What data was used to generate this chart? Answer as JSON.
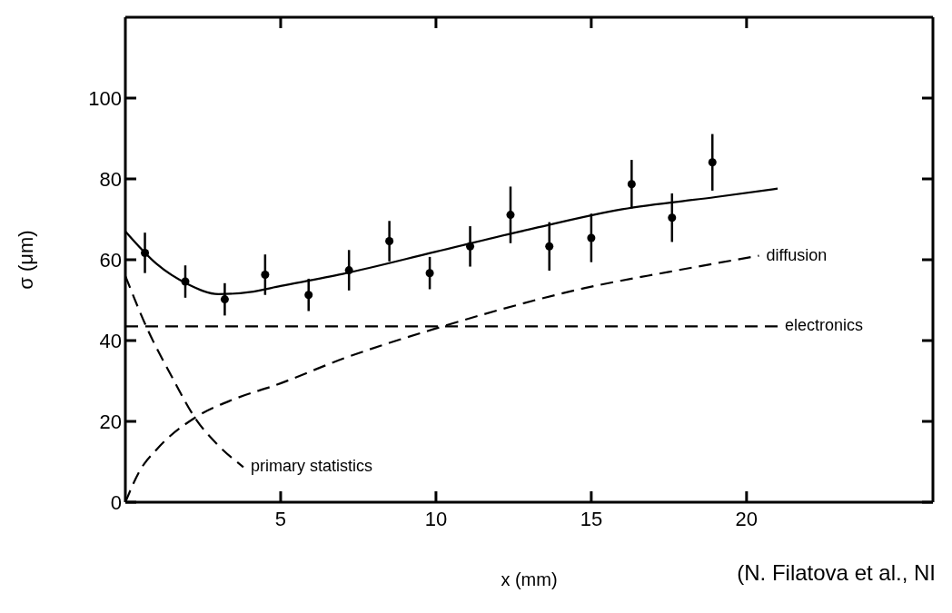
{
  "chart_data": {
    "type": "line",
    "xlabel": "x (mm)",
    "ylabel": "σ (μm)",
    "xlim": [
      0,
      26
    ],
    "xticks": [
      5,
      10,
      15,
      20
    ],
    "ylim": [
      0,
      120
    ],
    "yticks": [
      0,
      20,
      40,
      60,
      80,
      100
    ],
    "grid": false,
    "legend": false,
    "series": [
      {
        "type": "scatter",
        "color": "#000000",
        "marker": "circle",
        "x": [
          0.63,
          1.93,
          3.2,
          4.5,
          5.9,
          7.2,
          8.5,
          9.8,
          11.1,
          12.4,
          13.65,
          15,
          16.3,
          17.6,
          18.9
        ],
        "values": [
          61.7,
          54.6,
          50.2,
          56.3,
          51.3,
          57.4,
          64.6,
          56.7,
          63.3,
          71.1,
          63.3,
          65.4,
          78.7,
          70.4,
          84.1
        ],
        "errors": [
          5,
          4,
          4,
          5,
          4,
          5,
          5,
          4,
          5,
          7,
          6,
          6,
          6,
          6,
          7
        ]
      },
      {
        "color": "#000000",
        "line_style": "solid",
        "marker": "none",
        "x": [
          0,
          1,
          2,
          3,
          4,
          5,
          7,
          10,
          13,
          16,
          19,
          21
        ],
        "values": [
          67,
          59,
          54,
          51.5,
          52,
          53.5,
          56.5,
          62,
          67.5,
          72.5,
          75.5,
          77.6
        ]
      },
      {
        "name": "diffusion",
        "color": "#000000",
        "line_style": "dashed",
        "marker": "none",
        "x": [
          0,
          0.45,
          1,
          2.24,
          3.5,
          4.85,
          7,
          10,
          12,
          14.8,
          17.5,
          20.4
        ],
        "values": [
          0,
          7.6,
          13,
          20.9,
          25.5,
          29,
          35.5,
          43,
          47.5,
          53,
          57,
          61
        ]
      },
      {
        "name": "electronics",
        "color": "#000000",
        "line_style": "dashed",
        "marker": "none",
        "x": [
          0,
          21
        ],
        "values": [
          43.5,
          43.5
        ]
      },
      {
        "name": "primary statistics",
        "color": "#000000",
        "line_style": "dashed",
        "marker": "none",
        "x": [
          0,
          0.7,
          1.5,
          2.24,
          3,
          3.8
        ],
        "values": [
          56,
          43,
          31,
          20.9,
          14,
          8.7
        ]
      }
    ],
    "annotations": [
      "(N. Filatova et al., NI"
    ]
  }
}
